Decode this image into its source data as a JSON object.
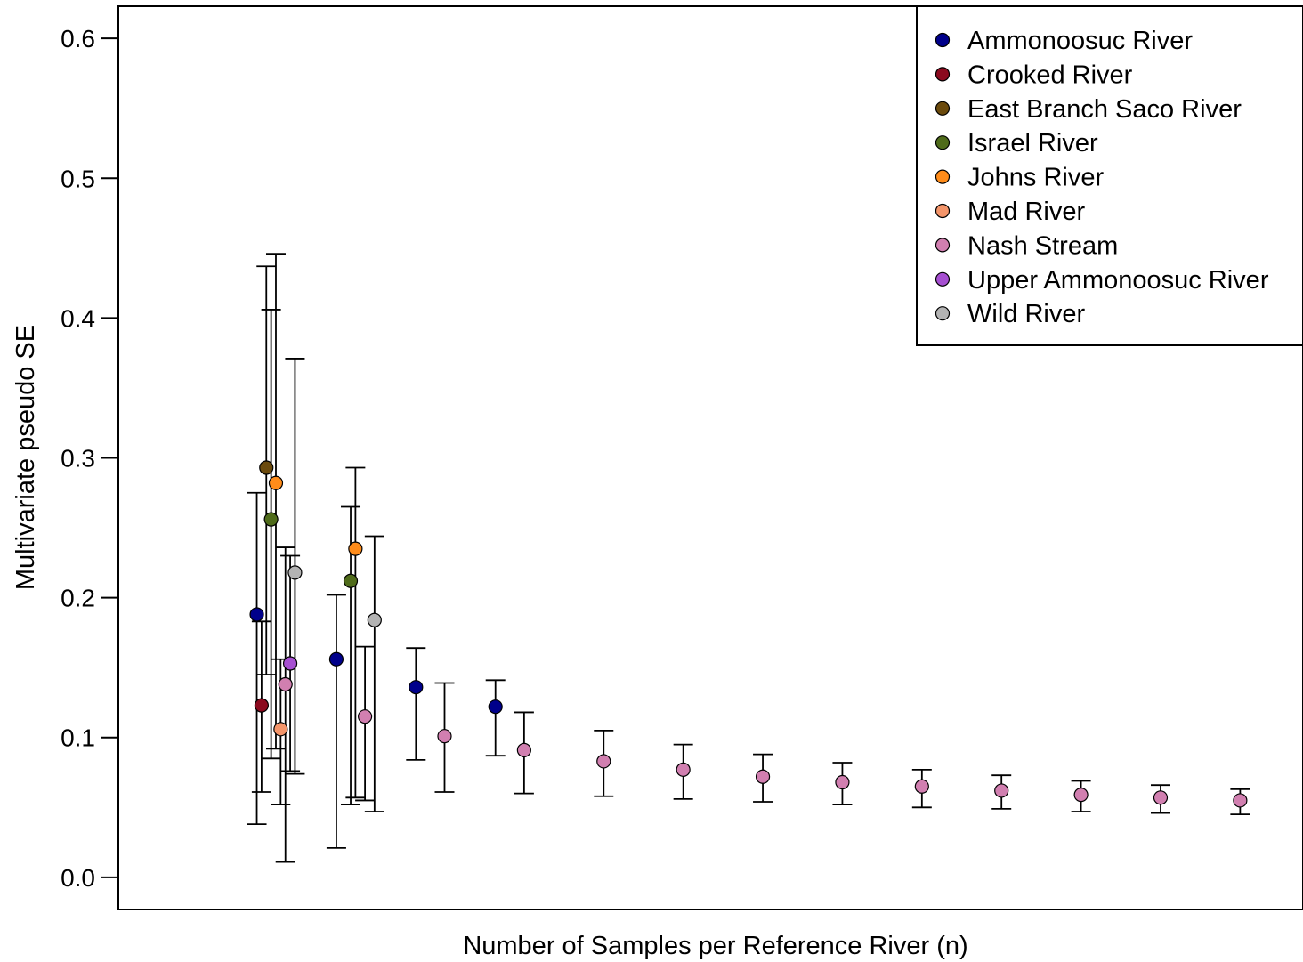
{
  "chart_data": {
    "type": "scatter",
    "title": "",
    "xlabel": "Number of Samples per Reference River (n)",
    "ylabel": "Multivariate pseudo SE",
    "ylim": [
      -0.023,
      0.623
    ],
    "y_ticks": [
      {
        "value": 0.0,
        "label": "0.0"
      },
      {
        "value": 0.1,
        "label": "0.1"
      },
      {
        "value": 0.2,
        "label": "0.2"
      },
      {
        "value": 0.3,
        "label": "0.3"
      },
      {
        "value": 0.4,
        "label": "0.4"
      },
      {
        "value": 0.5,
        "label": "0.5"
      },
      {
        "value": 0.6,
        "label": "0.6"
      }
    ],
    "x_ticks_shown": false,
    "grid": false,
    "legend_position": "top-right",
    "series": [
      {
        "name": "Ammonoosuc River",
        "color": "#00008B",
        "points": [
          {
            "x": 2.0,
            "y": 0.188,
            "lo": 0.038,
            "hi": 0.275
          },
          {
            "x": 3.0,
            "y": 0.156,
            "lo": 0.021,
            "hi": 0.202
          },
          {
            "x": 4.0,
            "y": 0.136,
            "lo": 0.084,
            "hi": 0.164
          },
          {
            "x": 5.0,
            "y": 0.122,
            "lo": 0.087,
            "hi": 0.141
          }
        ]
      },
      {
        "name": "Crooked River",
        "color": "#8B0A1E",
        "points": [
          {
            "x": 2.06,
            "y": 0.123,
            "lo": 0.061,
            "hi": 0.183
          }
        ]
      },
      {
        "name": "East Branch Saco River",
        "color": "#6B4A0C",
        "points": [
          {
            "x": 2.12,
            "y": 0.293,
            "lo": 0.145,
            "hi": 0.437
          }
        ]
      },
      {
        "name": "Israel River",
        "color": "#4F6B1A",
        "points": [
          {
            "x": 2.18,
            "y": 0.256,
            "lo": 0.085,
            "hi": 0.406
          },
          {
            "x": 3.18,
            "y": 0.212,
            "lo": 0.052,
            "hi": 0.265
          }
        ]
      },
      {
        "name": "Johns River",
        "color": "#FF8C1A",
        "points": [
          {
            "x": 2.24,
            "y": 0.282,
            "lo": 0.092,
            "hi": 0.446
          },
          {
            "x": 3.24,
            "y": 0.235,
            "lo": 0.057,
            "hi": 0.293
          }
        ]
      },
      {
        "name": "Mad River",
        "color": "#F4956A",
        "points": [
          {
            "x": 2.3,
            "y": 0.106,
            "lo": 0.052,
            "hi": 0.156
          }
        ]
      },
      {
        "name": "Nash Stream",
        "color": "#D17FB0",
        "points": [
          {
            "x": 2.36,
            "y": 0.138,
            "lo": 0.011,
            "hi": 0.236
          },
          {
            "x": 3.36,
            "y": 0.115,
            "lo": 0.055,
            "hi": 0.165
          },
          {
            "x": 4.36,
            "y": 0.101,
            "lo": 0.061,
            "hi": 0.139
          },
          {
            "x": 5.36,
            "y": 0.091,
            "lo": 0.06,
            "hi": 0.118
          },
          {
            "x": 6.36,
            "y": 0.083,
            "lo": 0.058,
            "hi": 0.105
          },
          {
            "x": 7.36,
            "y": 0.077,
            "lo": 0.056,
            "hi": 0.095
          },
          {
            "x": 8.36,
            "y": 0.072,
            "lo": 0.054,
            "hi": 0.088
          },
          {
            "x": 9.36,
            "y": 0.068,
            "lo": 0.052,
            "hi": 0.082
          },
          {
            "x": 10.36,
            "y": 0.065,
            "lo": 0.05,
            "hi": 0.077
          },
          {
            "x": 11.36,
            "y": 0.062,
            "lo": 0.049,
            "hi": 0.073
          },
          {
            "x": 12.36,
            "y": 0.059,
            "lo": 0.047,
            "hi": 0.069
          },
          {
            "x": 13.36,
            "y": 0.057,
            "lo": 0.046,
            "hi": 0.066
          },
          {
            "x": 14.36,
            "y": 0.055,
            "lo": 0.045,
            "hi": 0.063
          }
        ]
      },
      {
        "name": "Upper Ammonoosuc River",
        "color": "#A64FD1",
        "points": [
          {
            "x": 2.42,
            "y": 0.153,
            "lo": 0.076,
            "hi": 0.23
          }
        ]
      },
      {
        "name": "Wild River",
        "color": "#B3B3B3",
        "points": [
          {
            "x": 2.48,
            "y": 0.218,
            "lo": 0.074,
            "hi": 0.371
          },
          {
            "x": 3.48,
            "y": 0.184,
            "lo": 0.047,
            "hi": 0.244
          }
        ]
      }
    ]
  }
}
